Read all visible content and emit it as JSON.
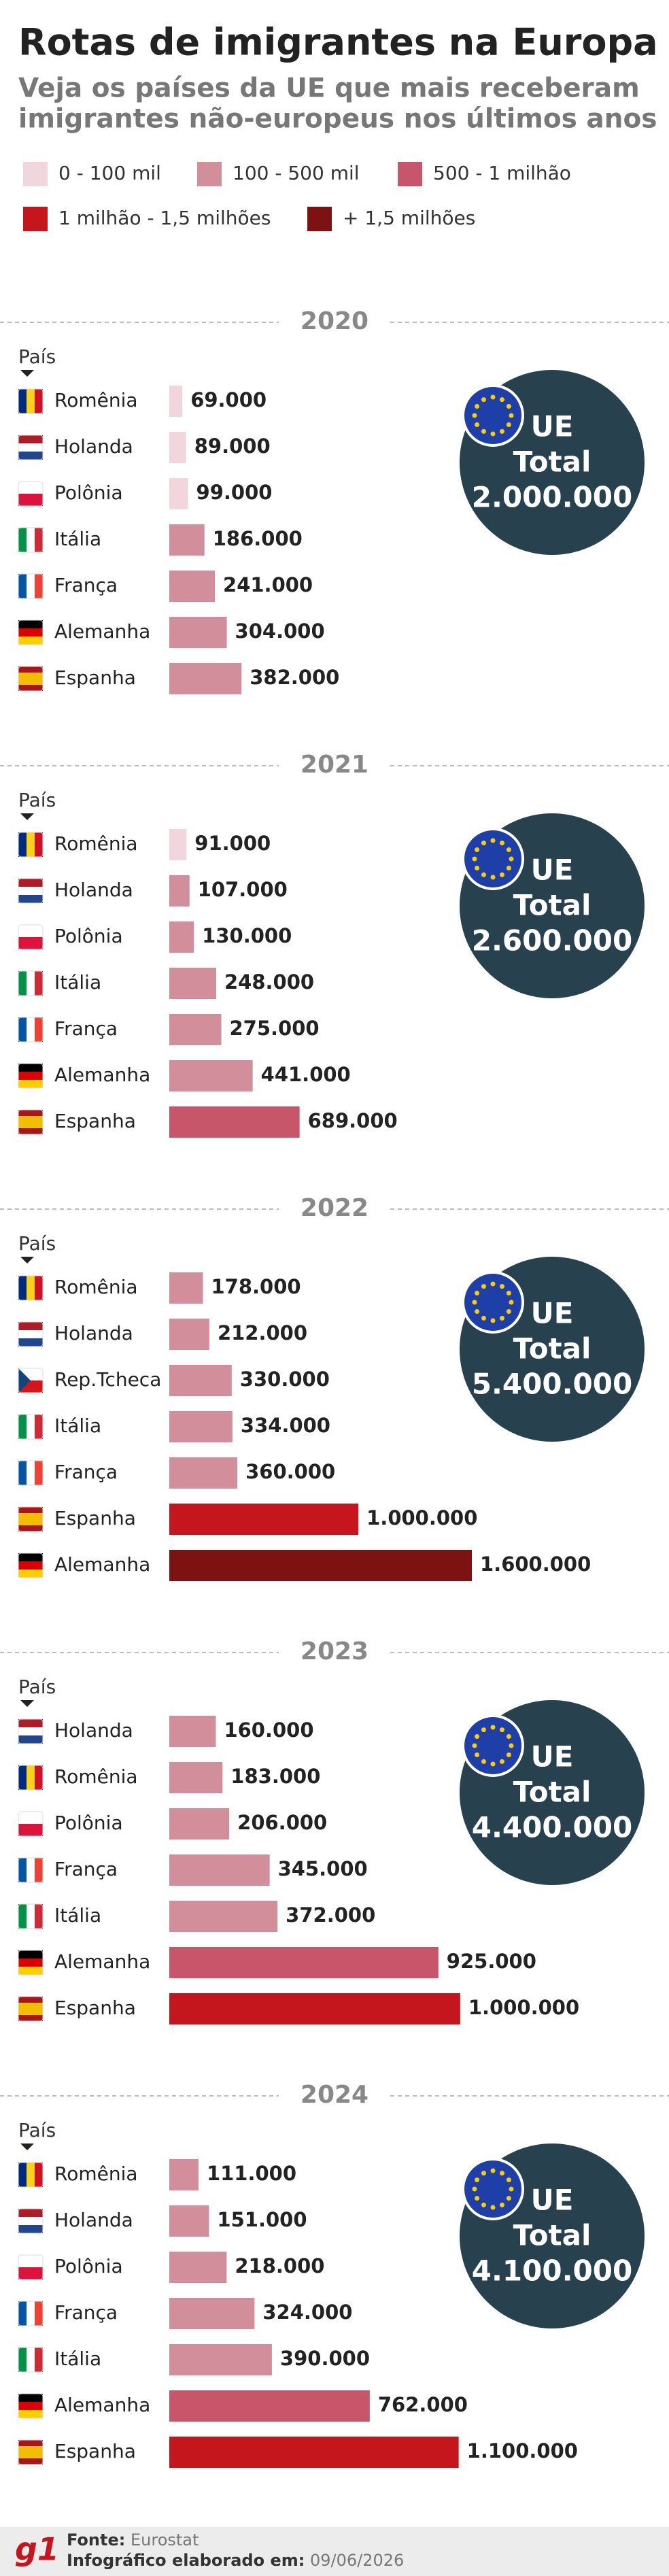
{
  "title": "Rotas de imigrantes na Europa",
  "subtitle": [
    "Veja os países da UE que mais receberam",
    "imigrantes não-europeus nos últimos anos"
  ],
  "legend": [
    {
      "label": "0 - 100 mil",
      "color": "#f1d6dd"
    },
    {
      "label": "100 - 500 mil",
      "color": "#d28e9a"
    },
    {
      "label": "500 - 1 milhão",
      "color": "#c8566a"
    },
    {
      "label": "1 milhão - 1,5 milhões",
      "color": "#c4161c"
    },
    {
      "label": "+ 1,5 milhões",
      "color": "#7c1212"
    }
  ],
  "chart_data": [
    {
      "type": "bar",
      "orientation": "horizontal",
      "title": "2020",
      "y_label": "País",
      "categories": [
        "Romênia",
        "Holanda",
        "Polônia",
        "Itália",
        "França",
        "Alemanha",
        "Espanha"
      ],
      "values": [
        69000,
        89000,
        99000,
        186000,
        241000,
        304000,
        382000
      ],
      "value_labels": [
        "69.000",
        "89.000",
        "99.000",
        "186.000",
        "241.000",
        "304.000",
        "382.000"
      ],
      "colors": [
        "#f1d6dd",
        "#f1d6dd",
        "#f1d6dd",
        "#d28e9a",
        "#d28e9a",
        "#d28e9a",
        "#d28e9a"
      ],
      "flags": [
        {
          "dir": "v",
          "colors": [
            "#002b7f",
            "#fcd116",
            "#ce1126"
          ]
        },
        {
          "dir": "h",
          "colors": [
            "#ae1c28",
            "#ffffff",
            "#21468b"
          ]
        },
        {
          "dir": "h",
          "colors": [
            "#ffffff",
            "#dc143c"
          ]
        },
        {
          "dir": "v",
          "colors": [
            "#009246",
            "#ffffff",
            "#ce2b37"
          ]
        },
        {
          "dir": "v",
          "colors": [
            "#0055a4",
            "#ffffff",
            "#ef4135"
          ]
        },
        {
          "dir": "h",
          "colors": [
            "#000000",
            "#dd0000",
            "#ffce00"
          ]
        },
        {
          "dir": "h",
          "colors": [
            "#aa151b",
            "#f1bf00",
            "#f1bf00",
            "#aa151b"
          ]
        }
      ],
      "xlim": [
        0,
        1600000
      ],
      "total_name": "UE",
      "total_text": "Total",
      "total": 2000000,
      "total_label": "2.000.000"
    },
    {
      "type": "bar",
      "orientation": "horizontal",
      "title": "2021",
      "y_label": "País",
      "categories": [
        "Romênia",
        "Holanda",
        "Polônia",
        "Itália",
        "França",
        "Alemanha",
        "Espanha"
      ],
      "values": [
        91000,
        107000,
        130000,
        248000,
        275000,
        441000,
        689000
      ],
      "value_labels": [
        "91.000",
        "107.000",
        "130.000",
        "248.000",
        "275.000",
        "441.000",
        "689.000"
      ],
      "colors": [
        "#f1d6dd",
        "#d28e9a",
        "#d28e9a",
        "#d28e9a",
        "#d28e9a",
        "#d28e9a",
        "#c8566a"
      ],
      "flags": [
        {
          "dir": "v",
          "colors": [
            "#002b7f",
            "#fcd116",
            "#ce1126"
          ]
        },
        {
          "dir": "h",
          "colors": [
            "#ae1c28",
            "#ffffff",
            "#21468b"
          ]
        },
        {
          "dir": "h",
          "colors": [
            "#ffffff",
            "#dc143c"
          ]
        },
        {
          "dir": "v",
          "colors": [
            "#009246",
            "#ffffff",
            "#ce2b37"
          ]
        },
        {
          "dir": "v",
          "colors": [
            "#0055a4",
            "#ffffff",
            "#ef4135"
          ]
        },
        {
          "dir": "h",
          "colors": [
            "#000000",
            "#dd0000",
            "#ffce00"
          ]
        },
        {
          "dir": "h",
          "colors": [
            "#aa151b",
            "#f1bf00",
            "#f1bf00",
            "#aa151b"
          ]
        }
      ],
      "xlim": [
        0,
        1600000
      ],
      "total_name": "UE",
      "total_text": "Total",
      "total": 2600000,
      "total_label": "2.600.000"
    },
    {
      "type": "bar",
      "orientation": "horizontal",
      "title": "2022",
      "y_label": "País",
      "categories": [
        "Romênia",
        "Holanda",
        "Rep.Tcheca",
        "Itália",
        "França",
        "Espanha",
        "Alemanha"
      ],
      "values": [
        178000,
        212000,
        330000,
        334000,
        360000,
        1000000,
        1600000
      ],
      "value_labels": [
        "178.000",
        "212.000",
        "330.000",
        "334.000",
        "360.000",
        "1.000.000",
        "1.600.000"
      ],
      "colors": [
        "#d28e9a",
        "#d28e9a",
        "#d28e9a",
        "#d28e9a",
        "#d28e9a",
        "#c4161c",
        "#7c1212"
      ],
      "flags": [
        {
          "dir": "v",
          "colors": [
            "#002b7f",
            "#fcd116",
            "#ce1126"
          ]
        },
        {
          "dir": "h",
          "colors": [
            "#ae1c28",
            "#ffffff",
            "#21468b"
          ]
        },
        {
          "dir": "h",
          "colors": [
            "#ffffff",
            "#d7141a"
          ],
          "triangle": "#11457e"
        },
        {
          "dir": "v",
          "colors": [
            "#009246",
            "#ffffff",
            "#ce2b37"
          ]
        },
        {
          "dir": "v",
          "colors": [
            "#0055a4",
            "#ffffff",
            "#ef4135"
          ]
        },
        {
          "dir": "h",
          "colors": [
            "#aa151b",
            "#f1bf00",
            "#f1bf00",
            "#aa151b"
          ]
        },
        {
          "dir": "h",
          "colors": [
            "#000000",
            "#dd0000",
            "#ffce00"
          ]
        }
      ],
      "xlim": [
        0,
        1600000
      ],
      "total_name": "UE",
      "total_text": "Total",
      "total": 5400000,
      "total_label": "5.400.000"
    },
    {
      "type": "bar",
      "orientation": "horizontal",
      "title": "2023",
      "y_label": "País",
      "categories": [
        "Holanda",
        "Romênia",
        "Polônia",
        "França",
        "Itália",
        "Alemanha",
        "Espanha"
      ],
      "values": [
        160000,
        183000,
        206000,
        345000,
        372000,
        925000,
        1000000
      ],
      "value_labels": [
        "160.000",
        "183.000",
        "206.000",
        "345.000",
        "372.000",
        "925.000",
        "1.000.000"
      ],
      "colors": [
        "#d28e9a",
        "#d28e9a",
        "#d28e9a",
        "#d28e9a",
        "#d28e9a",
        "#c8566a",
        "#c4161c"
      ],
      "flags": [
        {
          "dir": "h",
          "colors": [
            "#ae1c28",
            "#ffffff",
            "#21468b"
          ]
        },
        {
          "dir": "v",
          "colors": [
            "#002b7f",
            "#fcd116",
            "#ce1126"
          ]
        },
        {
          "dir": "h",
          "colors": [
            "#ffffff",
            "#dc143c"
          ]
        },
        {
          "dir": "v",
          "colors": [
            "#0055a4",
            "#ffffff",
            "#ef4135"
          ]
        },
        {
          "dir": "v",
          "colors": [
            "#009246",
            "#ffffff",
            "#ce2b37"
          ]
        },
        {
          "dir": "h",
          "colors": [
            "#000000",
            "#dd0000",
            "#ffce00"
          ]
        },
        {
          "dir": "h",
          "colors": [
            "#aa151b",
            "#f1bf00",
            "#f1bf00",
            "#aa151b"
          ]
        }
      ],
      "xlim": [
        0,
        1040000
      ],
      "total_name": "UE",
      "total_text": "Total",
      "total": 4400000,
      "total_label": "4.400.000"
    },
    {
      "type": "bar",
      "orientation": "horizontal",
      "title": "2024",
      "y_label": "País",
      "categories": [
        "Romênia",
        "Holanda",
        "Polônia",
        "França",
        "Itália",
        "Alemanha",
        "Espanha"
      ],
      "values": [
        111000,
        151000,
        218000,
        324000,
        390000,
        762000,
        1100000
      ],
      "value_labels": [
        "111.000",
        "151.000",
        "218.000",
        "324.000",
        "390.000",
        "762.000",
        "1.100.000"
      ],
      "colors": [
        "#d28e9a",
        "#d28e9a",
        "#d28e9a",
        "#d28e9a",
        "#d28e9a",
        "#c8566a",
        "#c4161c"
      ],
      "flags": [
        {
          "dir": "v",
          "colors": [
            "#002b7f",
            "#fcd116",
            "#ce1126"
          ]
        },
        {
          "dir": "h",
          "colors": [
            "#ae1c28",
            "#ffffff",
            "#21468b"
          ]
        },
        {
          "dir": "h",
          "colors": [
            "#ffffff",
            "#dc143c"
          ]
        },
        {
          "dir": "v",
          "colors": [
            "#0055a4",
            "#ffffff",
            "#ef4135"
          ]
        },
        {
          "dir": "v",
          "colors": [
            "#009246",
            "#ffffff",
            "#ce2b37"
          ]
        },
        {
          "dir": "h",
          "colors": [
            "#000000",
            "#dd0000",
            "#ffce00"
          ]
        },
        {
          "dir": "h",
          "colors": [
            "#aa151b",
            "#f1bf00",
            "#f1bf00",
            "#aa151b"
          ]
        }
      ],
      "xlim": [
        0,
        1150000
      ],
      "total_name": "UE",
      "total_text": "Total",
      "total": 4100000,
      "total_label": "4.100.000"
    }
  ],
  "footer": {
    "logo": "g1",
    "source_label": "Fonte:",
    "source": "Eurostat",
    "credit_label": "Infográfico elaborado em:",
    "date": "09/06/2026"
  }
}
